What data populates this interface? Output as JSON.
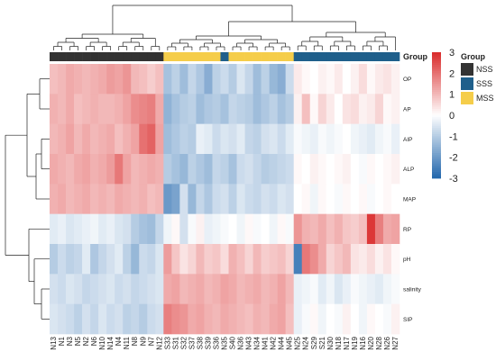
{
  "chart_data": {
    "type": "heatmap",
    "title": "",
    "columns": [
      "N13",
      "N1",
      "N3",
      "N5",
      "N2",
      "N6",
      "N10",
      "N14",
      "N4",
      "N11",
      "N8",
      "N9",
      "N7",
      "N12",
      "S33",
      "S31",
      "S32",
      "S37",
      "S38",
      "S39",
      "S36",
      "N35",
      "S40",
      "N36",
      "N43",
      "N34",
      "N41",
      "N42",
      "N44",
      "N45",
      "N25",
      "N24",
      "S29",
      "S21",
      "N30",
      "N18",
      "N17",
      "N19",
      "N16",
      "N20",
      "N28",
      "N26",
      "N27"
    ],
    "rows": [
      "OP",
      "AP",
      "AIP",
      "ALP",
      "MAP",
      "RP",
      "pH",
      "salinity",
      "SIP"
    ],
    "group_assignment": [
      "NSS",
      "NSS",
      "NSS",
      "NSS",
      "NSS",
      "NSS",
      "NSS",
      "NSS",
      "NSS",
      "NSS",
      "NSS",
      "NSS",
      "NSS",
      "NSS",
      "MSS",
      "MSS",
      "MSS",
      "MSS",
      "MSS",
      "MSS",
      "MSS",
      "SSS",
      "MSS",
      "MSS",
      "MSS",
      "MSS",
      "MSS",
      "MSS",
      "MSS",
      "MSS",
      "SSS",
      "SSS",
      "SSS",
      "SSS",
      "SSS",
      "SSS",
      "SSS",
      "SSS",
      "SSS",
      "SSS",
      "SSS",
      "SSS",
      "SSS"
    ],
    "values": [
      [
        0.9,
        1.0,
        1.2,
        1.1,
        1.0,
        1.1,
        1.2,
        1.4,
        1.3,
        1.5,
        1.0,
        0.9,
        0.7,
        0.9,
        -1.2,
        -0.9,
        -1.3,
        -0.8,
        -1.1,
        -1.6,
        -0.9,
        -0.7,
        -1.0,
        -0.5,
        -0.8,
        -1.3,
        -0.9,
        -1.4,
        -1.6,
        -0.7,
        0.3,
        0.1,
        0.0,
        0.2,
        0.1,
        0.3,
        0.0,
        0.2,
        0.5,
        0.1,
        0.3,
        0.4,
        0.2
      ],
      [
        1.1,
        1.0,
        1.2,
        0.9,
        1.0,
        1.1,
        1.0,
        1.0,
        1.1,
        1.3,
        1.6,
        1.7,
        1.8,
        1.2,
        -1.5,
        -1.2,
        -1.0,
        -0.9,
        -1.3,
        -1.1,
        -1.0,
        -1.2,
        -0.8,
        -0.9,
        -1.0,
        -1.3,
        -1.1,
        -0.9,
        -1.2,
        -1.0,
        0.2,
        0.9,
        0.1,
        0.6,
        0.3,
        0.0,
        0.4,
        0.5,
        0.2,
        0.3,
        0.6,
        0.1,
        0.2
      ],
      [
        1.0,
        1.1,
        1.3,
        1.0,
        1.2,
        1.0,
        1.1,
        1.2,
        0.9,
        1.1,
        1.3,
        2.0,
        2.2,
        1.3,
        -1.3,
        -1.1,
        -0.9,
        -1.0,
        -0.3,
        -0.4,
        -0.7,
        -0.5,
        -0.6,
        -0.4,
        -0.8,
        -0.9,
        -0.6,
        -0.5,
        -0.7,
        -0.4,
        -0.1,
        -0.2,
        -0.3,
        -0.1,
        -0.2,
        -0.1,
        0.0,
        -0.2,
        -0.3,
        -0.4,
        -0.2,
        -0.1,
        -0.3
      ],
      [
        1.2,
        1.1,
        1.0,
        1.2,
        1.3,
        1.1,
        1.2,
        1.4,
        1.9,
        1.3,
        1.0,
        1.1,
        1.2,
        1.1,
        -1.0,
        -1.2,
        -1.4,
        -0.9,
        -1.1,
        -1.3,
        -0.8,
        -0.9,
        -1.2,
        -0.7,
        -0.6,
        -0.8,
        -1.0,
        -0.9,
        -0.8,
        -0.7,
        0.1,
        0.0,
        0.2,
        0.1,
        0.0,
        0.1,
        0.2,
        0.0,
        -0.1,
        0.1,
        0.0,
        0.1,
        0.2
      ],
      [
        1.1,
        1.2,
        1.0,
        1.1,
        1.2,
        1.0,
        1.1,
        1.0,
        1.2,
        1.1,
        1.0,
        1.1,
        0.9,
        1.0,
        -2.0,
        -1.8,
        -0.6,
        -1.4,
        -0.8,
        -1.1,
        -0.7,
        -0.6,
        -0.9,
        -0.5,
        -0.7,
        -0.8,
        -0.6,
        -0.7,
        -0.5,
        -0.6,
        0.0,
        0.1,
        -0.2,
        0.1,
        0.0,
        -0.1,
        0.1,
        0.0,
        0.1,
        -0.1,
        0.0,
        0.1,
        0.0
      ],
      [
        -0.4,
        -0.3,
        -0.5,
        -0.4,
        -0.3,
        -0.2,
        -0.4,
        -0.3,
        -0.5,
        -0.6,
        -1.0,
        -1.2,
        -1.3,
        -0.8,
        -0.2,
        0.1,
        -0.6,
        -0.1,
        0.2,
        -0.3,
        -0.2,
        -0.1,
        0.0,
        -0.2,
        0.1,
        -0.1,
        0.0,
        -0.2,
        0.1,
        -0.1,
        1.5,
        1.1,
        1.0,
        1.2,
        0.9,
        1.1,
        0.8,
        0.7,
        0.9,
        2.8,
        1.8,
        1.2,
        1.3
      ],
      [
        -1.0,
        -0.7,
        -0.9,
        -0.8,
        -0.4,
        -1.1,
        -0.8,
        -0.6,
        -0.4,
        -0.9,
        -1.4,
        -0.7,
        -0.8,
        -0.5,
        1.4,
        0.8,
        0.4,
        0.6,
        1.0,
        0.7,
        0.8,
        0.5,
        1.1,
        0.9,
        0.6,
        1.0,
        0.7,
        0.8,
        0.9,
        0.6,
        -2.5,
        1.9,
        1.6,
        1.2,
        0.6,
        0.8,
        1.0,
        0.4,
        0.3,
        0.5,
        0.2,
        0.4,
        0.1
      ],
      [
        -0.6,
        -0.7,
        -0.5,
        -0.6,
        -0.8,
        -0.7,
        -0.6,
        -0.5,
        -0.7,
        -0.6,
        -0.8,
        -0.7,
        -0.6,
        -0.5,
        1.2,
        1.3,
        1.0,
        1.1,
        1.2,
        1.0,
        1.1,
        1.3,
        1.2,
        1.0,
        1.1,
        1.2,
        1.0,
        1.1,
        1.3,
        1.0,
        -0.3,
        -0.2,
        -0.1,
        -0.4,
        -0.2,
        -0.5,
        -0.3,
        -0.1,
        -0.2,
        -0.3,
        -0.4,
        -0.2,
        -0.1
      ],
      [
        -0.5,
        -0.6,
        -0.7,
        -0.9,
        -0.6,
        -0.8,
        -0.5,
        -0.7,
        -0.6,
        -0.9,
        -0.8,
        -1.0,
        -0.7,
        -0.6,
        1.8,
        1.6,
        1.5,
        1.2,
        1.3,
        1.1,
        1.0,
        1.2,
        1.1,
        1.0,
        0.9,
        1.1,
        1.0,
        1.2,
        1.3,
        0.9,
        -0.3,
        -0.1,
        0.1,
        -0.2,
        0.0,
        -0.1,
        0.2,
        0.0,
        -0.2,
        0.1,
        0.0,
        -0.1,
        0.2
      ]
    ],
    "color_scale": {
      "min": -3,
      "max": 3,
      "low": "#2166ac",
      "mid": "#ffffff",
      "high": "#d92a2a"
    },
    "colorbar_ticks": [
      "3",
      "2",
      "1",
      "0",
      "-1",
      "-2",
      "-3"
    ],
    "legend": {
      "title": "Group",
      "items": [
        {
          "label": "NSS",
          "color": "#333333"
        },
        {
          "label": "SSS",
          "color": "#1f5f8b"
        },
        {
          "label": "MSS",
          "color": "#f5cd4a"
        }
      ]
    },
    "annotation_label": "Group",
    "dendrogram": "column and row hierarchical clustering"
  }
}
